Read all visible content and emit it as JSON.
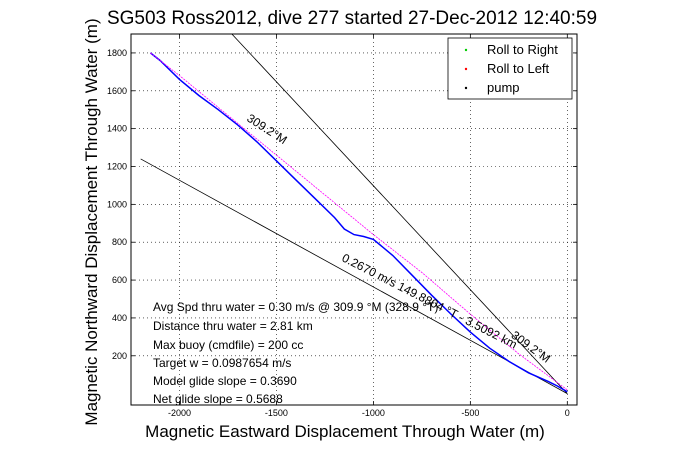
{
  "chart_data": {
    "type": "line",
    "title": "SG503 Ross2012, dive 277 started 27-Dec-2012 12:40:59",
    "xlabel": "Magnetic Eastward Displacement Through Water (m)",
    "ylabel": "Magnetic Northward Displacement Through Water (m)",
    "xlim": [
      -2250,
      50
    ],
    "ylim": [
      -60,
      1900
    ],
    "x_ticks": [
      -2000,
      -1500,
      -1000,
      -500,
      0
    ],
    "x_tick_labels": [
      "-2000",
      "-1500",
      "-1000",
      "-500",
      "0"
    ],
    "y_ticks": [
      200,
      400,
      600,
      800,
      1000,
      1200,
      1400,
      1600,
      1800
    ],
    "y_tick_labels": [
      "200",
      "400",
      "600",
      "800",
      "1000",
      "1200",
      "1400",
      "1600",
      "1800"
    ],
    "grid": true,
    "legend_position": "top-right",
    "legend": [
      {
        "label": "Roll to Right",
        "color": "#00cc00"
      },
      {
        "label": "Roll to Left",
        "color": "#ff0000"
      },
      {
        "label": "pump",
        "color": "#000000"
      }
    ],
    "series": [
      {
        "color": "#0000ff",
        "x": [
          -2150,
          -2100,
          -2000,
          -1900,
          -1800,
          -1700,
          -1600,
          -1500,
          -1400,
          -1300,
          -1200,
          -1150,
          -1100,
          -1050,
          -1000,
          -900,
          -800,
          -700,
          -600,
          -500,
          -400,
          -300,
          -200,
          -100,
          -50,
          0
        ],
        "y": [
          1800,
          1760,
          1660,
          1575,
          1500,
          1420,
          1330,
          1230,
          1130,
          1030,
          930,
          870,
          840,
          830,
          815,
          730,
          625,
          520,
          420,
          325,
          240,
          170,
          110,
          65,
          40,
          10
        ]
      },
      {
        "color": "#ff00ff",
        "x": [
          -2150,
          -2000,
          -1750,
          -1500,
          -1250,
          -1000,
          -750,
          -500,
          -250,
          0
        ],
        "y": [
          1800,
          1680,
          1470,
          1260,
          1050,
          840,
          640,
          420,
          210,
          20
        ]
      }
    ],
    "reference_lines": [
      {
        "color": "#000000",
        "x": [
          -2200,
          0
        ],
        "y": [
          1240,
          0
        ]
      },
      {
        "color": "#000000",
        "x": [
          -1730,
          0
        ],
        "y": [
          1900,
          0
        ]
      }
    ],
    "annotations": [
      {
        "text": "309.2°M",
        "x": -1560,
        "y": 1380,
        "angle": 33
      },
      {
        "text": "309.2°M",
        "x": -200,
        "y": 230,
        "angle": 36
      },
      {
        "text": "0.2670 m/s 149.8804 °T - 3.5092 km",
        "x": -720,
        "y": 470,
        "angle": 27
      }
    ],
    "stats": [
      "Avg Spd thru water =  0.30 m/s @ 309.9 °M (328.9 °T)",
      "Distance thru water =  2.81 km",
      "Max buoy (cmdfile) = 200 cc",
      "Target w = 0.0987654 m/s",
      "Model glide slope = 0.3690",
      "Net glide slope = 0.5688"
    ]
  }
}
